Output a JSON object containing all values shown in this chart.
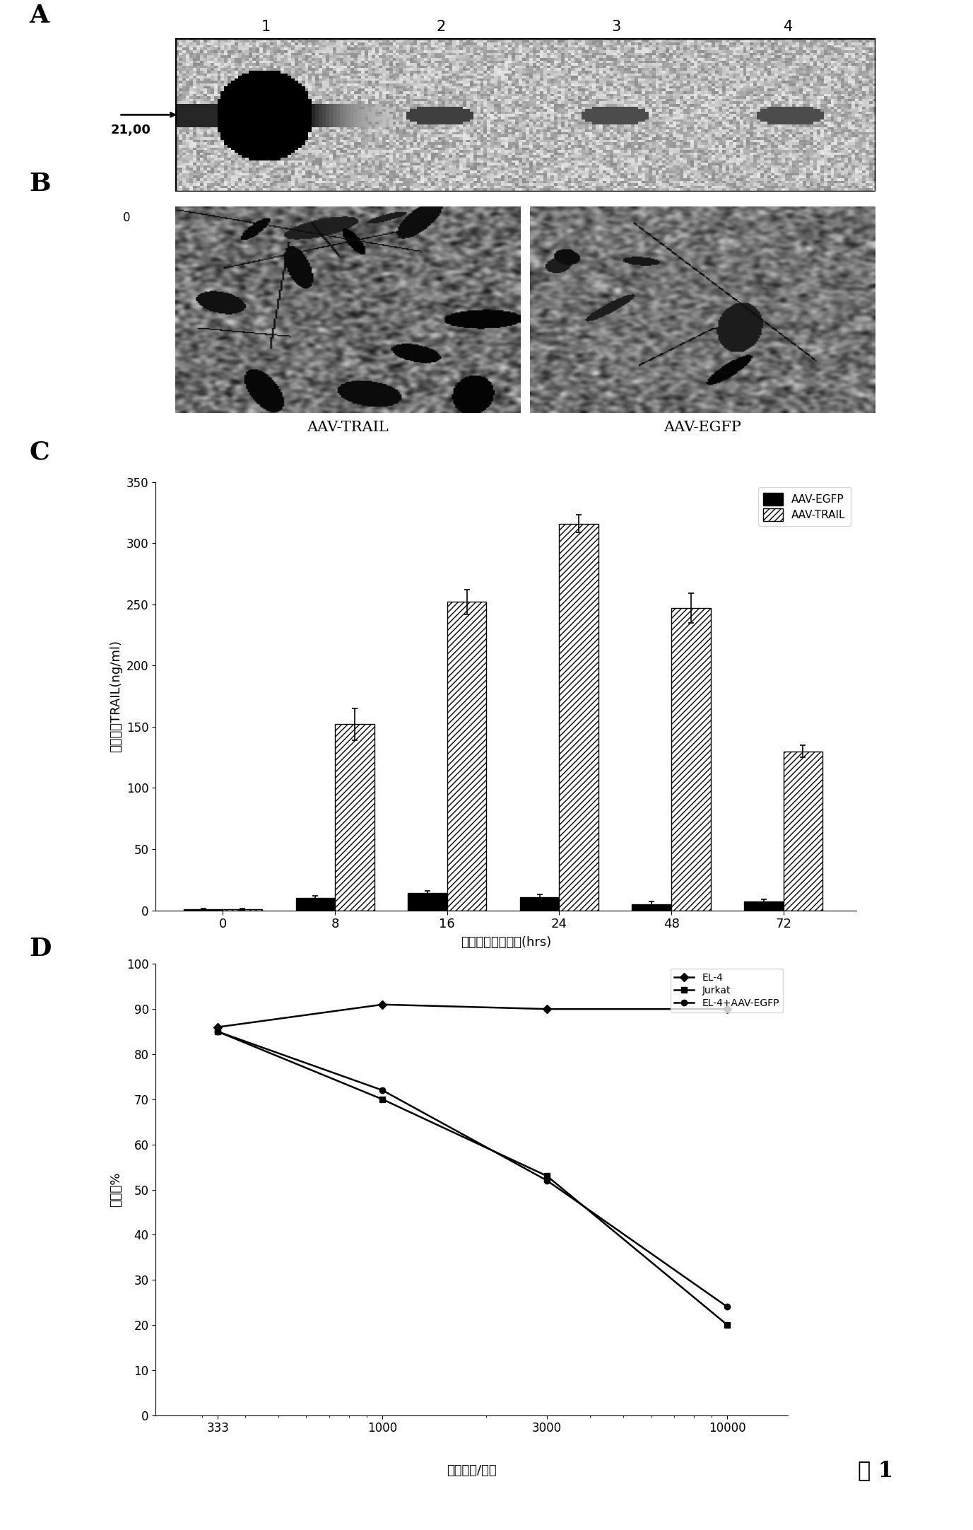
{
  "panel_labels": [
    "A",
    "B",
    "C",
    "D"
  ],
  "western_blot": {
    "lane_labels": [
      "1",
      "2",
      "3",
      "4"
    ],
    "marker_label": "21,00",
    "marker_arrow": true
  },
  "microscopy_labels": [
    "AAV-TRAIL",
    "AAV-EGFP"
  ],
  "bar_chart": {
    "time_points": [
      0,
      8,
      16,
      24,
      48,
      72
    ],
    "egfp_values": [
      1,
      10,
      14,
      11,
      5,
      7
    ],
    "trail_values": [
      1,
      152,
      252,
      316,
      247,
      130
    ],
    "egfp_errors": [
      0.5,
      2,
      2,
      2,
      2,
      2
    ],
    "trail_errors": [
      0.5,
      13,
      10,
      7,
      12,
      5
    ],
    "ylabel": "培养基中TRAIL(ng/ml)",
    "xlabel": "转染后的培养时间(hrs)",
    "ylim": [
      0,
      350
    ],
    "yticks": [
      0,
      50,
      100,
      150,
      200,
      250,
      300,
      350
    ],
    "legend_egfp": "AAV-EGFP",
    "legend_trail": "AAV-TRAIL"
  },
  "line_chart": {
    "x_values": [
      333,
      1000,
      3000,
      10000
    ],
    "el4_values": [
      86,
      91,
      90,
      90
    ],
    "jurkat_values": [
      85,
      70,
      53,
      20
    ],
    "el4_egfp_values": [
      85,
      72,
      52,
      24
    ],
    "ylabel": "活细胞%",
    "xlabel": "病毒颗粒/细胞",
    "ylim": [
      0,
      100
    ],
    "yticks": [
      0,
      10,
      20,
      30,
      40,
      50,
      60,
      70,
      80,
      90,
      100
    ],
    "legend_el4": "EL-4",
    "legend_jurkat": "Jurkat",
    "legend_el4egfp": "EL-4+AAV-EGFP"
  },
  "figure_label": "图 1",
  "bg_color": "#ffffff"
}
